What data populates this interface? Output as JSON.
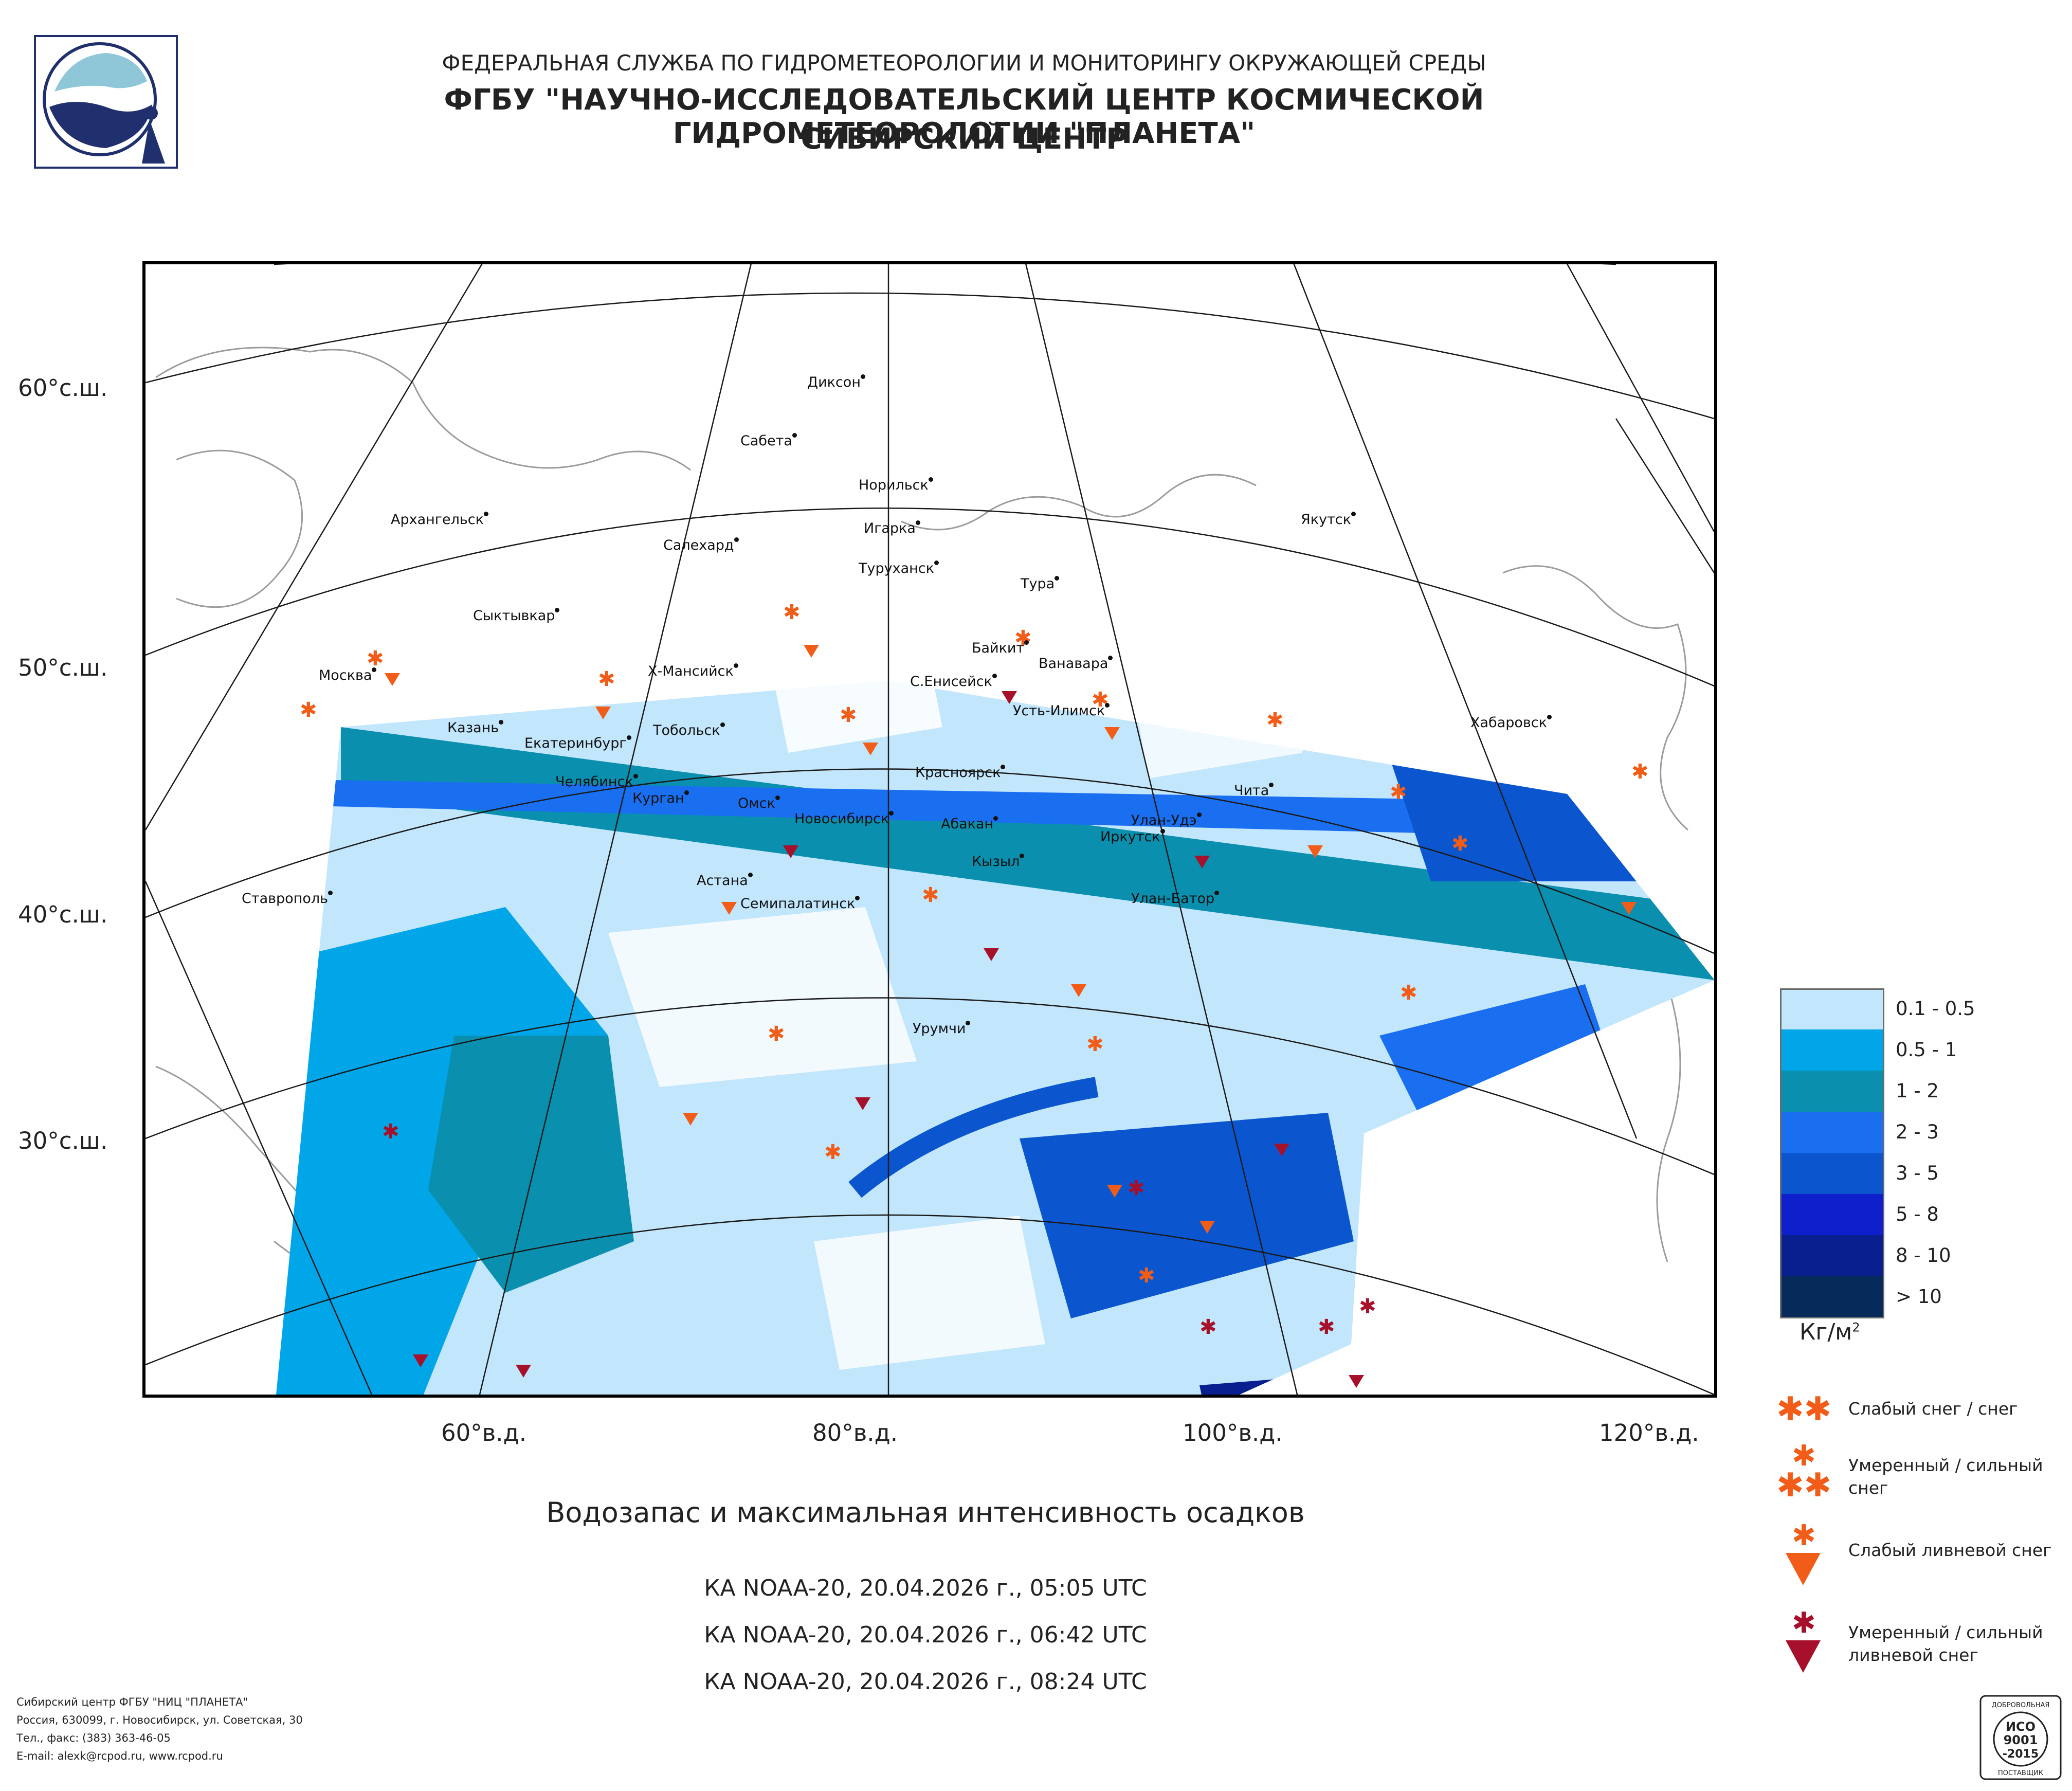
{
  "header": {
    "line1": "ФЕДЕРАЛЬНАЯ СЛУЖБА ПО ГИДРОМЕТЕОРОЛОГИИ И МОНИТОРИНГУ ОКРУЖАЮЩЕЙ СРЕДЫ",
    "line2": "ФГБУ \"НАУЧНО-ИССЛЕДОВАТЕЛЬСКИЙ ЦЕНТР КОСМИЧЕСКОЙ ГИДРОМЕТЕОРОЛОГИИ \"ПЛАНЕТА\"",
    "line3": "СИБИРСКИЙ ЦЕНТР"
  },
  "latitude_labels": [
    "60°с.ш.",
    "50°с.ш.",
    "40°с.ш.",
    "30°с.ш."
  ],
  "longitude_labels": [
    "60°в.д.",
    "80°в.д.",
    "100°в.д.",
    "120°в.д."
  ],
  "cities": [
    {
      "name": "Диксон"
    },
    {
      "name": "Сабета"
    },
    {
      "name": "Норильск"
    },
    {
      "name": "Игарка"
    },
    {
      "name": "Архангельск"
    },
    {
      "name": "Салехард"
    },
    {
      "name": "Туруханск"
    },
    {
      "name": "Якутск"
    },
    {
      "name": "Тура"
    },
    {
      "name": "Сыктывкар"
    },
    {
      "name": "Байкит"
    },
    {
      "name": "Ванавара"
    },
    {
      "name": "Москва"
    },
    {
      "name": "Х-Мансийск"
    },
    {
      "name": "С.Енисейск"
    },
    {
      "name": "Усть-Илимск"
    },
    {
      "name": "Хабаровск"
    },
    {
      "name": "Казань"
    },
    {
      "name": "Екатеринбург"
    },
    {
      "name": "Тобольск"
    },
    {
      "name": "Красноярск"
    },
    {
      "name": "Челябинск"
    },
    {
      "name": "Курган"
    },
    {
      "name": "Омск"
    },
    {
      "name": "Новосибирск"
    },
    {
      "name": "Чита"
    },
    {
      "name": "Абакан"
    },
    {
      "name": "Улан-Удэ"
    },
    {
      "name": "Иркутск"
    },
    {
      "name": "Кызыл"
    },
    {
      "name": "Астана"
    },
    {
      "name": "Ставрополь"
    },
    {
      "name": "Семипалатинск"
    },
    {
      "name": "Улан-Батор"
    },
    {
      "name": "Урумчи"
    }
  ],
  "legend": {
    "classes": [
      {
        "label": "0.1 - 0.5",
        "color": "#c2e6fb"
      },
      {
        "label": "0.5 - 1",
        "color": "#00a6e8"
      },
      {
        "label": "1 - 2",
        "color": "#0a8fae"
      },
      {
        "label": "2 - 3",
        "color": "#1a6ff0"
      },
      {
        "label": "3 - 5",
        "color": "#0b56cf"
      },
      {
        "label": "5 - 8",
        "color": "#0f1fcb"
      },
      {
        "label": "8 - 10",
        "color": "#0a1f8f"
      },
      {
        "label": "> 10",
        "color": "#062a5a"
      }
    ],
    "unit_main": "Кг/м",
    "unit_sup": "2"
  },
  "symbols": [
    {
      "label_line1": "Слабый снег / снег",
      "label_line2": "",
      "color": "#f25c19"
    },
    {
      "label_line1": "Умеренный / сильный",
      "label_line2": "снег",
      "color": "#f25c19"
    },
    {
      "label_line1": "Слабый ливневой снег",
      "label_line2": "",
      "color": "#f25c19"
    },
    {
      "label_line1": "Умеренный / сильный",
      "label_line2": "ливневой снег",
      "color": "#a6102a"
    }
  ],
  "title": {
    "main": "Водозапас и максимальная интенсивность осадков",
    "pass1": "КА NOAA-20, 20.04.2026 г., 05:05 UTC",
    "pass2": "КА NOAA-20, 20.04.2026 г., 06:42 UTC",
    "pass3": "КА NOAA-20, 20.04.2026 г., 08:24 UTC"
  },
  "footer": {
    "line1": "Сибирский центр ФГБУ \"НИЦ \"ПЛАНЕТА\"",
    "line2": "Россия, 630099, г. Новосибирск, ул. Советская, 30",
    "line3": "Тел., факс: (383) 363-46-05",
    "line4": "E-mail: alexk@rcpod.ru, www.rcpod.ru"
  },
  "badge": {
    "top": "ДОБРОВОЛЬНАЯ",
    "l1": "ИСО",
    "l2": "9001",
    "l3": "-2015",
    "bottom": "ПОСТАВЩИК"
  }
}
